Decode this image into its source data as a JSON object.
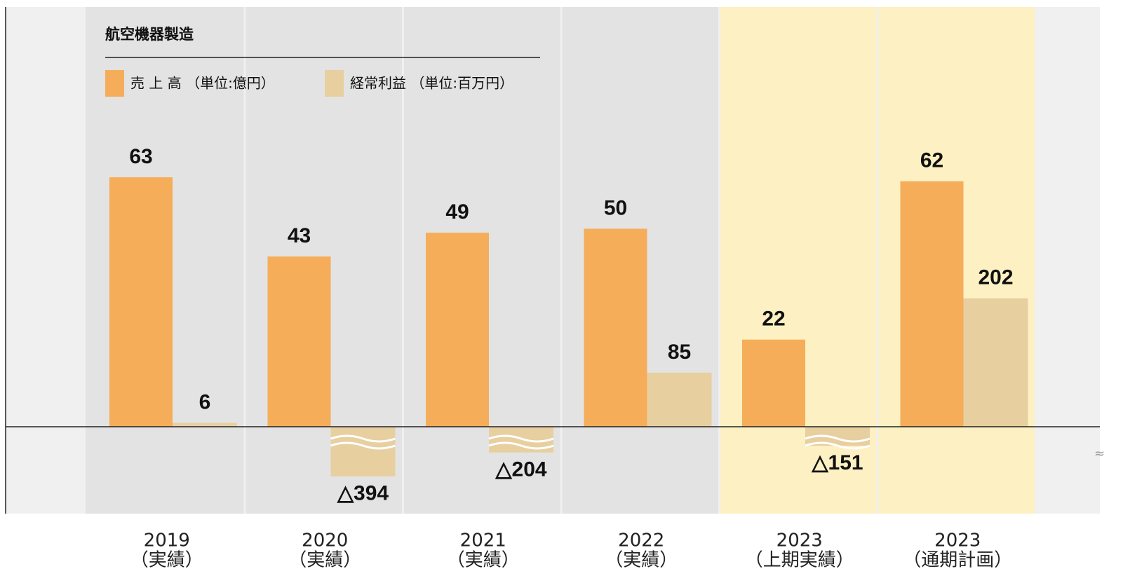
{
  "chart_data": {
    "type": "bar",
    "title": "航空機器製造",
    "categories": [
      [
        "2019",
        "（実績）"
      ],
      [
        "2020",
        "（実績）"
      ],
      [
        "2021",
        "（実績）"
      ],
      [
        "2022",
        "（実績）"
      ],
      [
        "2023",
        "（上期実績）"
      ],
      [
        "2023",
        "（通期計画）"
      ]
    ],
    "series": [
      {
        "name": "売 上 高 （単位:億円）",
        "color": "#f5ad5a",
        "values": [
          63,
          43,
          49,
          50,
          22,
          62
        ]
      },
      {
        "name": "経常利益 （単位:百万円）",
        "color": "#e8cfa0",
        "axis": "y2",
        "values": [
          6,
          -394,
          -204,
          85,
          -151,
          202
        ],
        "value_labels": [
          "6",
          "△394",
          "△204",
          "85",
          "△151",
          "202"
        ]
      }
    ],
    "ylim": [
      0,
      106
    ],
    "y2lim": [
      -690,
      660
    ],
    "column_colors": [
      "#e3e3e3",
      "#e3e3e3",
      "#e3e3e3",
      "#e3e3e3",
      "#fdf0c2",
      "#fdf0c2"
    ]
  }
}
